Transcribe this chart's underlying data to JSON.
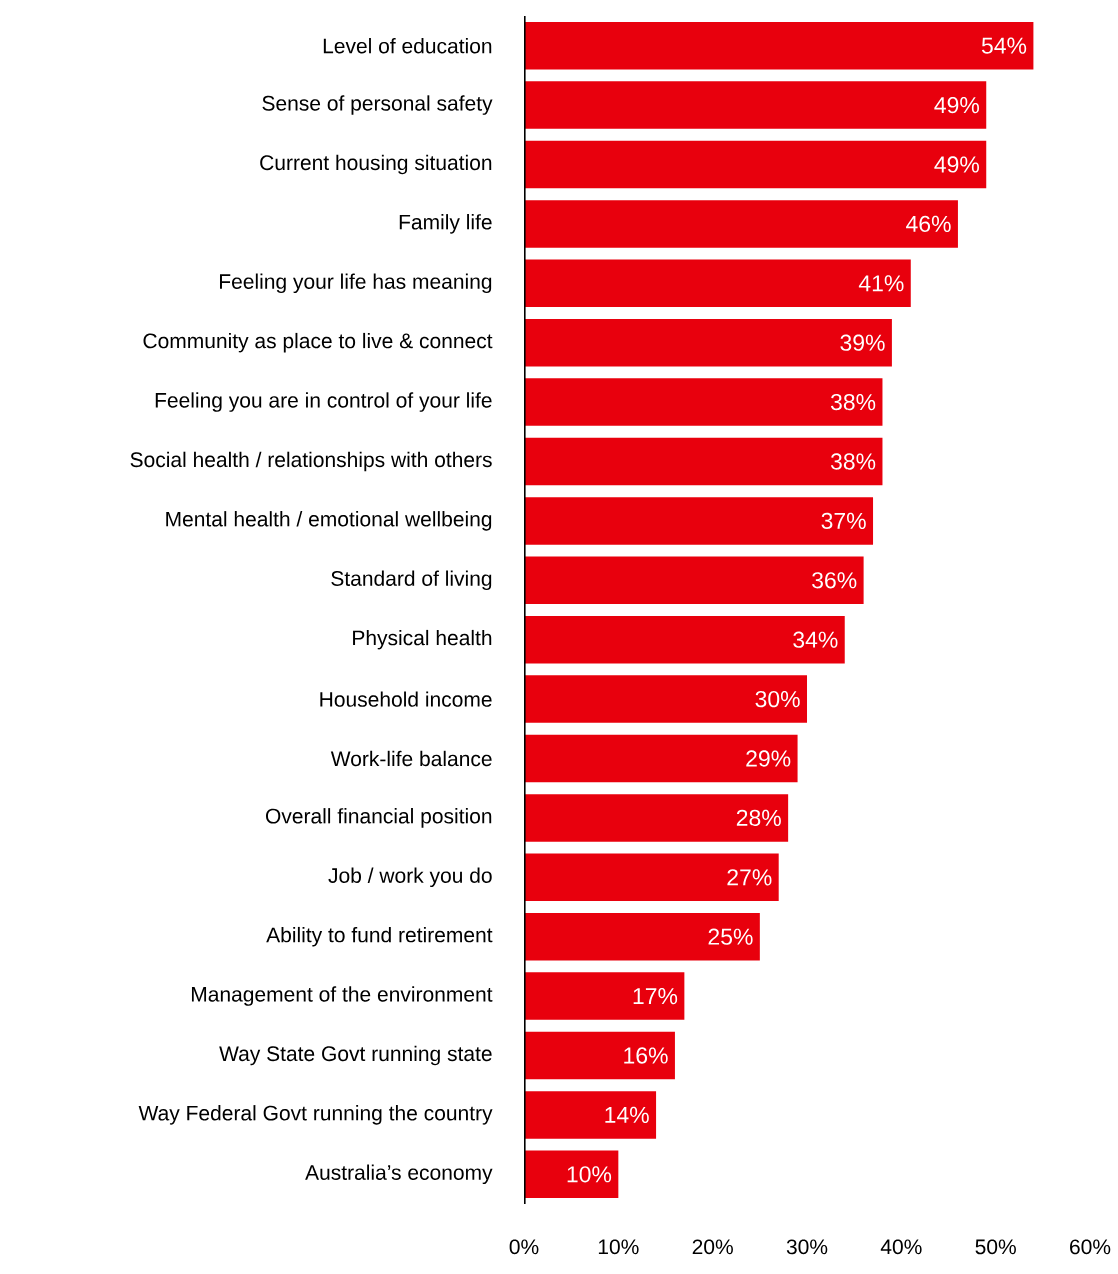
{
  "chart_data": {
    "type": "bar",
    "orientation": "horizontal",
    "categories": [
      "Level of education",
      "Sense of personal safety",
      "Current housing situation",
      "Family life",
      "Feeling your life has meaning",
      "Community as place to live & connect",
      "Feeling you are in control of your life",
      "Social health / relationships with others",
      "Mental health / emotional wellbeing",
      "Standard of living",
      "Physical health",
      "Household income",
      "Work-life balance",
      "Overall financial position",
      "Job / work you do",
      "Ability to fund retirement",
      "Management of the environment",
      "Way State Govt running state",
      "Way Federal Govt running the country",
      "Australia’s economy"
    ],
    "values": [
      54,
      49,
      49,
      46,
      41,
      39,
      38,
      38,
      37,
      36,
      34,
      30,
      29,
      28,
      27,
      25,
      17,
      16,
      14,
      10
    ],
    "value_labels": [
      "54%",
      "49%",
      "49%",
      "46%",
      "41%",
      "39%",
      "38%",
      "38%",
      "37%",
      "36%",
      "34%",
      "30%",
      "29%",
      "28%",
      "27%",
      "25%",
      "17%",
      "16%",
      "14%",
      "10%"
    ],
    "color": "#e8000d",
    "xlim": [
      0,
      60
    ],
    "xticks": [
      {
        "value": 0,
        "label": "0%"
      },
      {
        "value": 10,
        "label": "10%"
      },
      {
        "value": 20,
        "label": "20%"
      },
      {
        "value": 30,
        "label": "30%"
      },
      {
        "value": 40,
        "label": "40%"
      },
      {
        "value": 50,
        "label": "50%"
      },
      {
        "value": 60,
        "label": "60%"
      }
    ]
  }
}
